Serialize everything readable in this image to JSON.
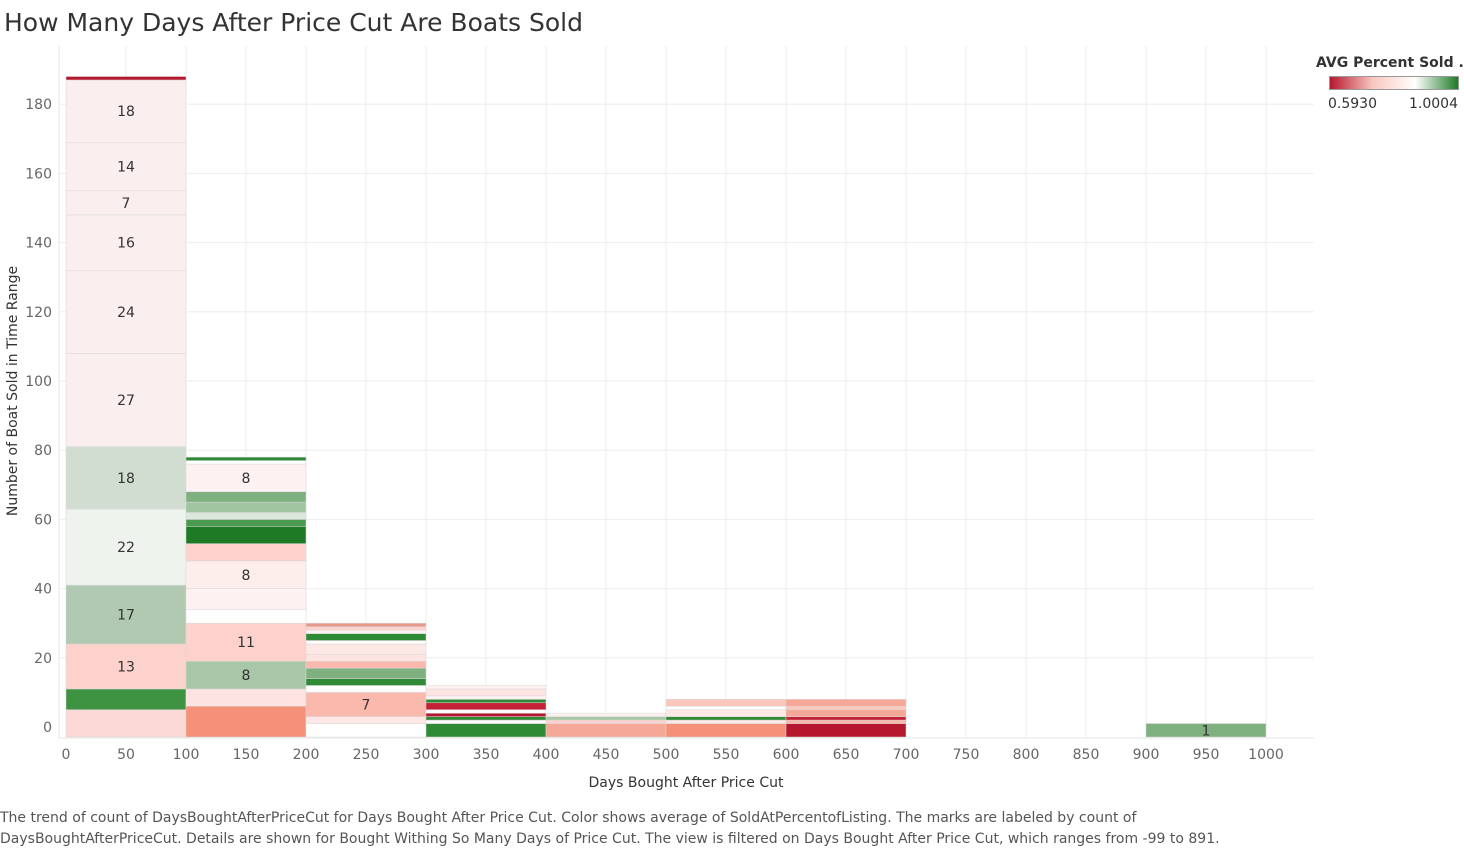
{
  "page": {
    "title": "How Many Days After Price Cut Are Boats Sold",
    "caption": "The trend of count of DaysBoughtAfterPriceCut for Days Bought After Price Cut.  Color shows average of SoldAtPercentofListing.  The marks are labeled by count of DaysBoughtAfterPriceCut.  Details are shown for Bought Withing So Many Days of Price Cut. The view is filtered on Days Bought After Price Cut, which ranges from -99 to 891."
  },
  "legend": {
    "title": "AVG Percent Sold ..",
    "min_label": "0.5930",
    "max_label": "1.0004",
    "colors": [
      "#b5172f",
      "#f9c7c0",
      "#ffffff",
      "#1e7a25"
    ]
  },
  "chart_data": {
    "type": "bar",
    "subtype": "stacked-histogram",
    "xlabel": "Days Bought After Price Cut",
    "ylabel": "Number of Boat Sold in Time Range",
    "xlim": [
      -5,
      1040
    ],
    "ylim": [
      -3,
      192
    ],
    "x_ticks": [
      0,
      50,
      100,
      150,
      200,
      250,
      300,
      350,
      400,
      450,
      500,
      550,
      600,
      650,
      700,
      750,
      800,
      850,
      900,
      950,
      1000
    ],
    "y_ticks": [
      0,
      20,
      40,
      60,
      80,
      100,
      120,
      140,
      160,
      180
    ],
    "grid": true,
    "legend_position": "top-right",
    "bins": [
      {
        "x0": 0,
        "x1": 100,
        "segments": [
          {
            "count": 5,
            "color": "#fbd9d6"
          },
          {
            "count": 6,
            "color": "#3d9342"
          },
          {
            "count": 13,
            "color": "#fdd2cd",
            "label": "13"
          },
          {
            "count": 17,
            "color": "#b0c9b0",
            "label": "17"
          },
          {
            "count": 22,
            "color": "#eef3ee",
            "label": "22"
          },
          {
            "count": 18,
            "color": "#d2ddd2",
            "label": "18"
          },
          {
            "count": 27,
            "color": "#fbeeee",
            "label": "27"
          },
          {
            "count": 24,
            "color": "#fbeeee",
            "label": "24"
          },
          {
            "count": 16,
            "color": "#fbeeee",
            "label": "16"
          },
          {
            "count": 7,
            "color": "#fbeeee",
            "label": "7"
          },
          {
            "count": 14,
            "color": "#fbeeee",
            "label": "14"
          },
          {
            "count": 18,
            "color": "#fbeeee",
            "label": "18"
          },
          {
            "count": 1,
            "color": "#b5172f"
          }
        ]
      },
      {
        "x0": 100,
        "x1": 200,
        "segments": [
          {
            "count": 6,
            "color": "#f59079"
          },
          {
            "count": 5,
            "color": "#fde4e2"
          },
          {
            "count": 8,
            "color": "#a8c7a8",
            "label": "8"
          },
          {
            "count": 11,
            "color": "#fdd2cd",
            "label": "11"
          },
          {
            "count": 4,
            "color": "#ffffff"
          },
          {
            "count": 6,
            "color": "#fdf2f1"
          },
          {
            "count": 8,
            "color": "#fdeeec",
            "label": "8"
          },
          {
            "count": 5,
            "color": "#fdd2cd"
          },
          {
            "count": 5,
            "color": "#1e7a25"
          },
          {
            "count": 2,
            "color": "#4a9a4f"
          },
          {
            "count": 2,
            "color": "#dce8dc"
          },
          {
            "count": 3,
            "color": "#a0c5a0"
          },
          {
            "count": 3,
            "color": "#7fb07f"
          },
          {
            "count": 8,
            "color": "#fdf2f1",
            "label": "8"
          },
          {
            "count": 1,
            "color": "#ffffff"
          },
          {
            "count": 1,
            "color": "#2f8a36"
          }
        ]
      },
      {
        "x0": 200,
        "x1": 300,
        "segments": [
          {
            "count": 1,
            "color": "#ffffff"
          },
          {
            "count": 2,
            "color": "#fde8e6"
          },
          {
            "count": 7,
            "color": "#fbb9ae",
            "label": "7"
          },
          {
            "count": 2,
            "color": "#ffffff"
          },
          {
            "count": 2,
            "color": "#2f8a36"
          },
          {
            "count": 3,
            "color": "#7fb07f"
          },
          {
            "count": 2,
            "color": "#fbb9ae"
          },
          {
            "count": 2,
            "color": "#fde4e2"
          },
          {
            "count": 3,
            "color": "#fde8e6"
          },
          {
            "count": 1,
            "color": "#ffffff"
          },
          {
            "count": 2,
            "color": "#2f8a36"
          },
          {
            "count": 1,
            "color": "#fdf2f1"
          },
          {
            "count": 1,
            "color": "#fdd2cd"
          },
          {
            "count": 1,
            "color": "#e8998a"
          }
        ]
      },
      {
        "x0": 300,
        "x1": 400,
        "segments": [
          {
            "count": 1,
            "color": "#2f8a36"
          },
          {
            "count": 1,
            "color": "#ffffff"
          },
          {
            "count": 1,
            "color": "#2f8a36"
          },
          {
            "count": 1,
            "color": "#b5172f"
          },
          {
            "count": 1,
            "color": "#ffffff"
          },
          {
            "count": 2,
            "color": "#c42038"
          },
          {
            "count": 1,
            "color": "#2f8a36"
          },
          {
            "count": 1,
            "color": "#fdf2f1"
          },
          {
            "count": 2,
            "color": "#fde4e2"
          },
          {
            "count": 1,
            "color": "#fdf2f1"
          }
        ]
      },
      {
        "x0": 400,
        "x1": 500,
        "segments": [
          {
            "count": 1,
            "color": "#f6a898"
          },
          {
            "count": 1,
            "color": "#fdd2cd"
          },
          {
            "count": 1,
            "color": "#a8c7a8"
          },
          {
            "count": 1,
            "color": "#fdf2f1"
          }
        ]
      },
      {
        "x0": 500,
        "x1": 600,
        "segments": [
          {
            "count": 1,
            "color": "#f59079"
          },
          {
            "count": 1,
            "color": "#fde8e6"
          },
          {
            "count": 1,
            "color": "#2f8a36"
          },
          {
            "count": 2,
            "color": "#fde8e6"
          },
          {
            "count": 1,
            "color": "#ffffff"
          },
          {
            "count": 2,
            "color": "#fbc6bc"
          }
        ]
      },
      {
        "x0": 600,
        "x1": 700,
        "segments": [
          {
            "count": 1,
            "color": "#b5172f"
          },
          {
            "count": 1,
            "color": "#f9b6a8"
          },
          {
            "count": 1,
            "color": "#c42038"
          },
          {
            "count": 2,
            "color": "#f6a898"
          },
          {
            "count": 1,
            "color": "#fbc6bc"
          },
          {
            "count": 2,
            "color": "#f6a898"
          }
        ]
      },
      {
        "x0": 900,
        "x1": 1000,
        "segments": [
          {
            "count": 1,
            "color": "#7fb07f",
            "label": "1"
          }
        ]
      }
    ]
  }
}
